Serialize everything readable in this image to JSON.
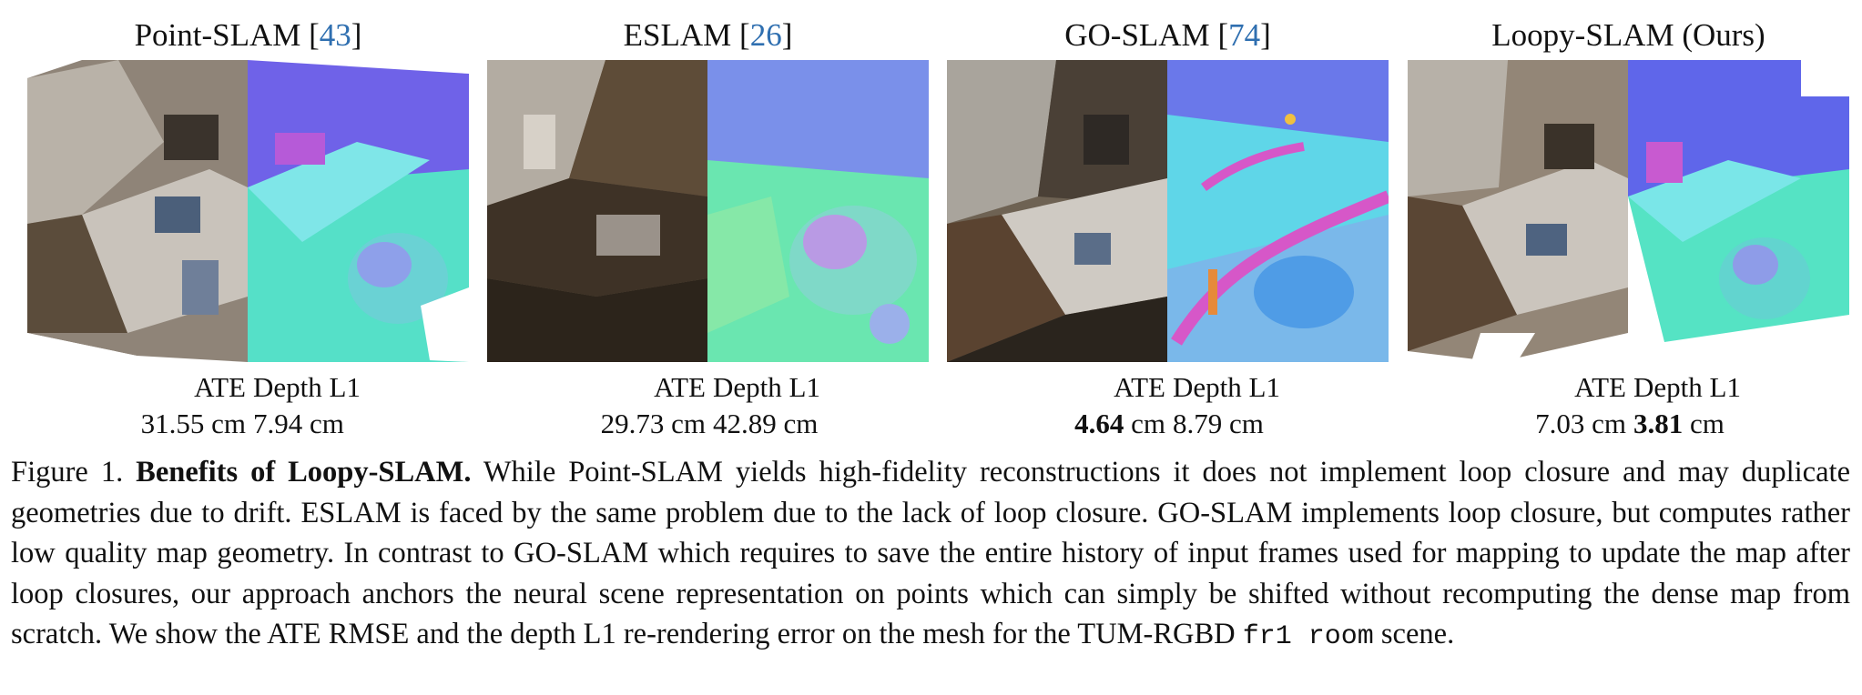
{
  "panels": [
    {
      "method": "Point-SLAM",
      "cite": "43",
      "bracket_open": " [",
      "bracket_close": "]",
      "ate_label": "ATE",
      "depth_label": "Depth L1",
      "ate_value": "31.55",
      "ate_unit": " cm",
      "depth_value": "7.94",
      "depth_unit": " cm",
      "ate_bold": false,
      "depth_bold": false,
      "colors": {
        "rgb_base": "#8f8478",
        "rgb_dark": "#3a332c",
        "normal_base": "#55e0c8",
        "normal_alt": "#6f62e8"
      }
    },
    {
      "method": "ESLAM",
      "cite": "26",
      "bracket_open": " [",
      "bracket_close": "]",
      "ate_label": "ATE",
      "depth_label": "Depth L1",
      "ate_value": "29.73",
      "ate_unit": " cm",
      "depth_value": "42.89",
      "depth_unit": " cm",
      "ate_bold": false,
      "depth_bold": false,
      "colors": {
        "rgb_base": "#7a6a55",
        "rgb_dark": "#2c241b",
        "normal_base": "#6ae6b0",
        "normal_alt": "#8a7ce8"
      }
    },
    {
      "method": "GO-SLAM",
      "cite": "74",
      "bracket_open": " [",
      "bracket_close": "]",
      "ate_label": "ATE",
      "depth_label": "Depth L1",
      "ate_value": "4.64",
      "ate_unit": " cm",
      "depth_value": "8.79",
      "depth_unit": " cm",
      "ate_bold": true,
      "depth_bold": false,
      "colors": {
        "rgb_base": "#6e6253",
        "rgb_dark": "#2a241d",
        "normal_base": "#5fd6e8",
        "normal_alt": "#d657c8"
      }
    },
    {
      "method": "Loopy-SLAM (Ours)",
      "cite": "",
      "bracket_open": "",
      "bracket_close": "",
      "ate_label": "ATE",
      "depth_label": "Depth L1",
      "ate_value": "7.03",
      "ate_unit": " cm",
      "depth_value": "3.81",
      "depth_unit": " cm",
      "ate_bold": false,
      "depth_bold": true,
      "colors": {
        "rgb_base": "#938677",
        "rgb_dark": "#3a3229",
        "normal_base": "#55e3c4",
        "normal_alt": "#5f66ea"
      }
    }
  ],
  "caption": {
    "prefix": "Figure 1. ",
    "bold_title": "Benefits of Loopy-SLAM.",
    "text_1": " While Point-SLAM yields high-fidelity reconstructions it does not implement loop closure and may duplicate geometries due to drift.  ESLAM is faced by the same problem due to the lack of loop closure.  GO-SLAM implements loop closure, but computes rather low quality map geometry. In contrast to GO-SLAM which requires to save the entire history of input frames used for mapping to update the map after loop closures, our approach anchors the neural scene representation on points which can simply be shifted without recomputing the dense map from scratch. We show the ATE RMSE and the depth L1 re-rendering error on the mesh for the TUM-RGBD ",
    "mono": "fr1 room",
    "text_2": " scene."
  }
}
